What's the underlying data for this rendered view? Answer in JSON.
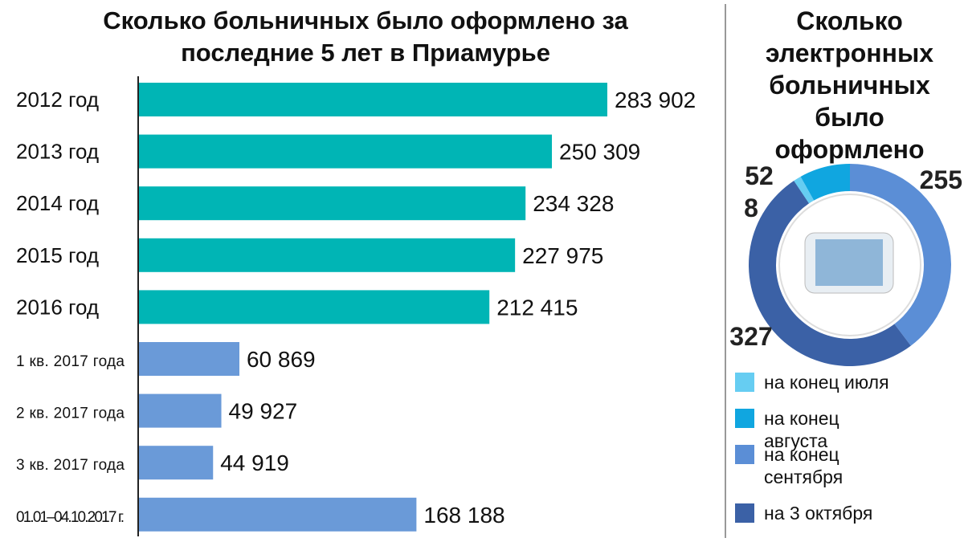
{
  "chart_data": [
    {
      "type": "bar",
      "title": "Сколько больничных было оформлено за последние 5 лет в Приамурье",
      "categories": [
        "2012 год",
        "2013 год",
        "2014 год",
        "2015 год",
        "2016 год",
        "1 кв. 2017 года",
        "2 кв. 2017 года",
        "3 кв. 2017 года",
        "01.01–04.10.2017 г."
      ],
      "values": [
        283902,
        250309,
        234328,
        227975,
        212415,
        60869,
        49927,
        44919,
        168188
      ],
      "value_labels": [
        "283 902",
        "250 309",
        "234 328",
        "227 975",
        "212 415",
        "60 869",
        "49 927",
        "44 919",
        "168 188"
      ],
      "colors": [
        "#00b5b5",
        "#00b5b5",
        "#00b5b5",
        "#00b5b5",
        "#00b5b5",
        "#6a9ad8",
        "#6a9ad8",
        "#6a9ad8",
        "#6a9ad8"
      ]
    },
    {
      "type": "pie",
      "title": "Сколько электронных больничных было оформлено",
      "categories": [
        "на конец июля",
        "на конец августа",
        "на конец сентября",
        "на 3 октября"
      ],
      "values": [
        8,
        52,
        255,
        327
      ],
      "colors": [
        "#66cdf2",
        "#10a6e0",
        "#5b8ed6",
        "#3b61a6"
      ]
    }
  ]
}
